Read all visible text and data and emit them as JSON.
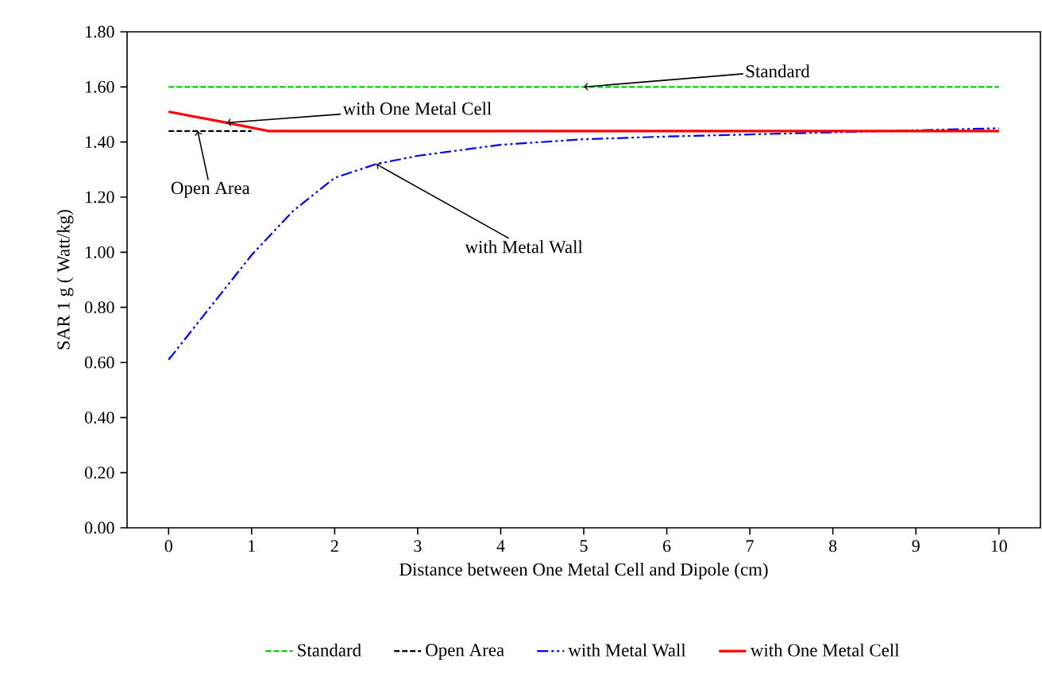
{
  "chart_data": {
    "type": "line",
    "xlabel": "Distance between One Metal Cell and Dipole (cm)",
    "ylabel": "SAR 1 g ( Watt/kg)",
    "xlim": [
      -0.5,
      10.5
    ],
    "xticks": [
      0,
      1,
      2,
      3,
      4,
      5,
      6,
      7,
      8,
      9,
      10
    ],
    "ylim": [
      0,
      1.8
    ],
    "yticks": [
      {
        "value": 0,
        "label": "0.00"
      },
      {
        "value": 0.2,
        "label": "0.20"
      },
      {
        "value": 0.4,
        "label": "0.40"
      },
      {
        "value": 0.6,
        "label": "0.60"
      },
      {
        "value": 0.8,
        "label": "0.80"
      },
      {
        "value": 1.0,
        "label": "1.00"
      },
      {
        "value": 1.2,
        "label": "1.20"
      },
      {
        "value": 1.4,
        "label": "1.40"
      },
      {
        "value": 1.6,
        "label": "1.60"
      },
      {
        "value": 1.8,
        "label": "1.80"
      }
    ],
    "grid": false,
    "legend": "bottom",
    "marker": "none",
    "series": [
      {
        "name": "Standard",
        "color": "#00cc00",
        "line_style": "dashed",
        "x": [
          0,
          10
        ],
        "values": [
          1.6,
          1.6
        ]
      },
      {
        "name": "Open Area",
        "color": "#000000",
        "line_style": "dashed",
        "x": [
          0,
          1
        ],
        "values": [
          1.44,
          1.44
        ]
      },
      {
        "name": "with Metal Wall",
        "color": "#0000ff",
        "line_style": "dashdotdotted",
        "x": [
          0,
          0.5,
          1,
          1.5,
          2,
          2.5,
          3,
          4,
          5,
          6,
          7,
          8,
          10
        ],
        "values": [
          0.61,
          0.8,
          0.99,
          1.15,
          1.27,
          1.32,
          1.35,
          1.39,
          1.41,
          1.42,
          null,
          null,
          1.45
        ]
      },
      {
        "name": "with One Metal Cell",
        "color": "#ff0000",
        "line_style": "solid",
        "x": [
          0,
          0.7,
          1.2,
          10
        ],
        "values": [
          1.51,
          1.47,
          1.44,
          1.44
        ]
      }
    ],
    "annotations": [
      {
        "text": "Standard",
        "x": 5,
        "y": 1.6
      },
      {
        "text": "with One Metal Cell",
        "x": 0.7,
        "y": 1.47
      },
      {
        "text": "Open Area",
        "x": 0.35,
        "y": 1.44
      },
      {
        "text": "with Metal Wall",
        "x": 2.5,
        "y": 1.32
      }
    ]
  }
}
